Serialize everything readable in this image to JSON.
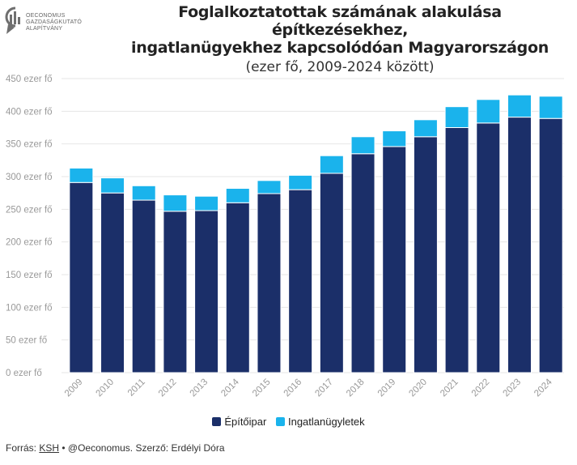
{
  "logo": {
    "line1": "OECONOMUS",
    "line2": "GAZDASÁGKUTATÓ",
    "line3": "ALAPÍTVÁNY"
  },
  "header": {
    "title_line1": "Foglalkoztatottak számának alakulása építkezésekhez,",
    "title_line2": "ingatlanügyekhez kapcsolódóan Magyarországon",
    "subtitle": "(ezer fő, 2009-2024 között)"
  },
  "colors": {
    "construction": "#1b2f69",
    "real_estate": "#1ab3ec",
    "grid": "#e6e6e6"
  },
  "chart_data": {
    "type": "bar",
    "stacked": true,
    "categories": [
      "2009",
      "2010",
      "2011",
      "2012",
      "2013",
      "2014",
      "2015",
      "2016",
      "2017",
      "2018",
      "2019",
      "2020",
      "2021",
      "2022",
      "2023",
      "2024"
    ],
    "series": [
      {
        "name": "Építőipar",
        "values": [
          291,
          275,
          264,
          247,
          248,
          260,
          274,
          280,
          305,
          335,
          346,
          361,
          375,
          382,
          391,
          389
        ]
      },
      {
        "name": "Ingatlanügyletek",
        "values": [
          22,
          23,
          22,
          25,
          22,
          22,
          20,
          22,
          27,
          26,
          24,
          26,
          32,
          36,
          34,
          34
        ]
      }
    ],
    "ylim": [
      0,
      450
    ],
    "yticks": [
      0,
      50,
      100,
      150,
      200,
      250,
      300,
      350,
      400,
      450
    ],
    "ytick_labels": [
      "0 ezer fő",
      "50 ezer fő",
      "100 ezer fő",
      "150 ezer fő",
      "200 ezer fő",
      "250 ezer fő",
      "300 ezer fő",
      "350 ezer fő",
      "400 ezer fő",
      "450 ezer fő"
    ],
    "grid": true,
    "legend_position": "bottom-center"
  },
  "footer": {
    "prefix": "Forrás: ",
    "link": "KSH",
    "suffix": " • @Oeconomus. Szerző: Erdélyi Dóra"
  }
}
